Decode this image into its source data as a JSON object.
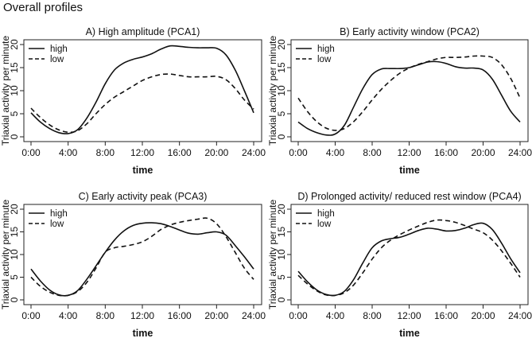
{
  "figure_title": "Overall profiles",
  "chart_data": [
    {
      "type": "line",
      "title": "A) High amplitude (PCA1)",
      "xlabel": "time",
      "ylabel": "Triaxial activity per minute",
      "x_ticks": [
        "0:00",
        "4:00",
        "8:00",
        "12:00",
        "16:00",
        "20:00",
        "24:00"
      ],
      "y_ticks": [
        0,
        5,
        10,
        15,
        20
      ],
      "xlim": [
        0,
        24
      ],
      "ylim": [
        0,
        20
      ],
      "legend": "top-left",
      "series": [
        {
          "name": "high",
          "style": "solid",
          "x": [
            0,
            1,
            2,
            3,
            4,
            5,
            6,
            7,
            8,
            9,
            10,
            11,
            12,
            13,
            14,
            15,
            16,
            17,
            18,
            19,
            20,
            21,
            22,
            23,
            24
          ],
          "values": [
            5.2,
            3.2,
            1.8,
            0.9,
            0.7,
            1.5,
            4.0,
            7.5,
            11.5,
            14.5,
            16.0,
            16.8,
            17.3,
            18.0,
            19.0,
            19.7,
            19.6,
            19.4,
            19.3,
            19.3,
            19.2,
            17.8,
            14.5,
            10.0,
            5.2
          ]
        },
        {
          "name": "low",
          "style": "dashed",
          "x": [
            0,
            1,
            2,
            3,
            4,
            5,
            6,
            7,
            8,
            9,
            10,
            11,
            12,
            13,
            14,
            15,
            16,
            17,
            18,
            19,
            20,
            21,
            22,
            23,
            24
          ],
          "values": [
            6.2,
            4.2,
            2.6,
            1.5,
            1.0,
            1.3,
            2.8,
            5.0,
            7.0,
            8.6,
            9.8,
            11.0,
            12.2,
            13.0,
            13.5,
            13.6,
            13.3,
            13.0,
            13.0,
            13.0,
            13.1,
            12.4,
            10.5,
            8.0,
            6.0
          ]
        }
      ]
    },
    {
      "type": "line",
      "title": "B) Early activity window (PCA2)",
      "xlabel": "time",
      "ylabel": "Triaxial activity per minute",
      "x_ticks": [
        "0:00",
        "4:00",
        "8:00",
        "12:00",
        "16:00",
        "20:00",
        "24:00"
      ],
      "y_ticks": [
        0,
        5,
        10,
        15,
        20
      ],
      "xlim": [
        0,
        24
      ],
      "ylim": [
        0,
        20
      ],
      "legend": "top-left",
      "series": [
        {
          "name": "high",
          "style": "solid",
          "x": [
            0,
            1,
            2,
            3,
            4,
            5,
            6,
            7,
            8,
            9,
            10,
            11,
            12,
            13,
            14,
            15,
            16,
            17,
            18,
            19,
            20,
            21,
            22,
            23,
            24
          ],
          "values": [
            3.2,
            1.8,
            0.9,
            0.4,
            0.6,
            2.5,
            6.5,
            10.5,
            13.5,
            14.7,
            14.8,
            14.8,
            15.0,
            15.6,
            16.2,
            16.3,
            15.9,
            15.2,
            14.9,
            14.9,
            14.5,
            12.5,
            9.0,
            5.5,
            3.2
          ]
        },
        {
          "name": "low",
          "style": "dashed",
          "x": [
            0,
            1,
            2,
            3,
            4,
            5,
            6,
            7,
            8,
            9,
            10,
            11,
            12,
            13,
            14,
            15,
            16,
            17,
            18,
            19,
            20,
            21,
            22,
            23,
            24
          ],
          "values": [
            8.4,
            5.5,
            3.3,
            1.9,
            1.4,
            1.8,
            3.3,
            5.5,
            8.0,
            10.3,
            12.2,
            13.8,
            14.9,
            15.7,
            16.3,
            16.9,
            17.2,
            17.2,
            17.3,
            17.5,
            17.5,
            17.2,
            15.6,
            12.6,
            8.4
          ]
        }
      ]
    },
    {
      "type": "line",
      "title": "C) Early activity peak (PCA3)",
      "xlabel": "time",
      "ylabel": "Triaxial activity per minute",
      "x_ticks": [
        "0:00",
        "4:00",
        "8:00",
        "12:00",
        "16:00",
        "20:00",
        "24:00"
      ],
      "y_ticks": [
        0,
        5,
        10,
        15,
        20
      ],
      "xlim": [
        0,
        24
      ],
      "ylim": [
        0,
        20
      ],
      "legend": "top-left",
      "series": [
        {
          "name": "high",
          "style": "solid",
          "x": [
            0,
            1,
            2,
            3,
            4,
            5,
            6,
            7,
            8,
            9,
            10,
            11,
            12,
            13,
            14,
            15,
            16,
            17,
            18,
            19,
            20,
            21,
            22,
            23,
            24
          ],
          "values": [
            6.8,
            4.2,
            2.2,
            1.1,
            1.0,
            2.0,
            4.5,
            7.5,
            10.5,
            13.2,
            15.2,
            16.4,
            16.9,
            17.0,
            16.8,
            16.2,
            15.4,
            14.7,
            14.5,
            14.8,
            15.0,
            14.3,
            12.0,
            9.5,
            6.8
          ]
        },
        {
          "name": "low",
          "style": "dashed",
          "x": [
            0,
            1,
            2,
            3,
            4,
            5,
            6,
            7,
            8,
            9,
            10,
            11,
            12,
            13,
            14,
            15,
            16,
            17,
            18,
            19,
            20,
            21,
            22,
            23,
            24
          ],
          "values": [
            5.0,
            3.0,
            1.7,
            1.0,
            1.0,
            1.8,
            3.8,
            7.0,
            10.5,
            11.5,
            11.8,
            12.2,
            12.8,
            14.0,
            15.5,
            16.5,
            17.1,
            17.5,
            17.8,
            18.0,
            16.8,
            14.0,
            10.5,
            7.0,
            4.5
          ]
        }
      ]
    },
    {
      "type": "line",
      "title": "D) Prolonged activity/ reduced rest window (PCA4)",
      "xlabel": "time",
      "ylabel": "Triaxial activity per minute",
      "x_ticks": [
        "0:00",
        "4:00",
        "8:00",
        "12:00",
        "16:00",
        "20:00",
        "24:00"
      ],
      "y_ticks": [
        0,
        5,
        10,
        15,
        20
      ],
      "xlim": [
        0,
        24
      ],
      "ylim": [
        0,
        20
      ],
      "legend": "top-left",
      "series": [
        {
          "name": "high",
          "style": "solid",
          "x": [
            0,
            1,
            2,
            3,
            4,
            5,
            6,
            7,
            8,
            9,
            10,
            11,
            12,
            13,
            14,
            15,
            16,
            17,
            18,
            19,
            20,
            21,
            22,
            23,
            24
          ],
          "values": [
            6.3,
            4.0,
            2.2,
            1.2,
            1.0,
            1.9,
            4.5,
            8.2,
            11.5,
            13.0,
            13.5,
            13.8,
            14.5,
            15.3,
            15.8,
            15.6,
            15.2,
            15.3,
            15.8,
            16.6,
            16.9,
            15.5,
            12.5,
            9.0,
            6.0
          ]
        },
        {
          "name": "low",
          "style": "dashed",
          "x": [
            0,
            1,
            2,
            3,
            4,
            5,
            6,
            7,
            8,
            9,
            10,
            11,
            12,
            13,
            14,
            15,
            16,
            17,
            18,
            19,
            20,
            21,
            22,
            23,
            24
          ],
          "values": [
            5.4,
            3.5,
            2.0,
            1.1,
            1.0,
            1.6,
            3.3,
            6.0,
            9.0,
            11.5,
            13.2,
            14.4,
            15.4,
            16.3,
            17.1,
            17.6,
            17.5,
            17.1,
            16.4,
            15.6,
            14.8,
            13.2,
            10.8,
            8.0,
            5.0
          ]
        }
      ]
    }
  ]
}
